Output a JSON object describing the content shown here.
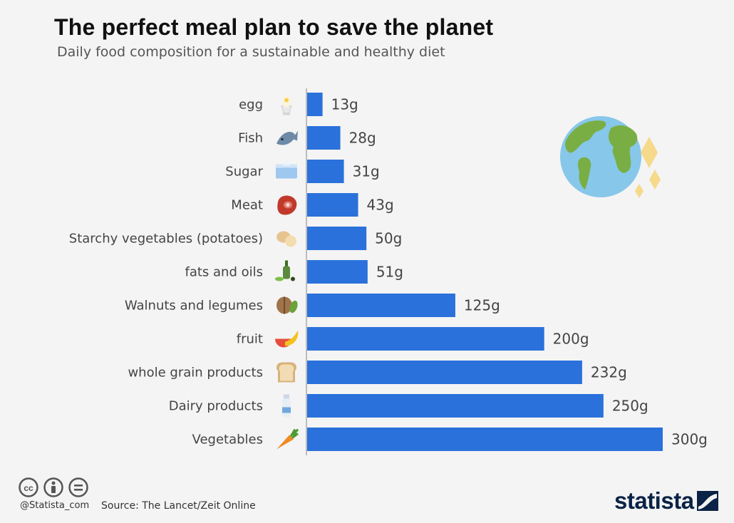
{
  "title": "The perfect meal plan to save the planet",
  "subtitle": "Daily food composition for a sustainable and healthy diet",
  "footer": {
    "handle": "@Statista_com",
    "source": "Source: The Lancet/Zeit Online",
    "brand": "statista"
  },
  "colors": {
    "bar": "#2a71db",
    "background": "#f4f4f4",
    "axis": "#bdbdbd",
    "label_text": "#444444",
    "value_text": "#444444"
  },
  "chart_data": {
    "type": "bar",
    "orientation": "horizontal",
    "title": "The perfect meal plan to save the planet",
    "subtitle": "Daily food composition for a sustainable and healthy diet",
    "xlabel": "",
    "ylabel": "",
    "xlim": [
      0,
      300
    ],
    "grid": false,
    "categories": [
      "egg",
      "Fish",
      "Sugar",
      "Meat",
      "Starchy vegetables (potatoes)",
      "fats and oils",
      "Walnuts and legumes",
      "fruit",
      "whole grain products",
      "Dairy products",
      "Vegetables"
    ],
    "values": [
      13,
      28,
      31,
      43,
      50,
      51,
      125,
      200,
      232,
      250,
      300
    ],
    "value_labels": [
      "13g",
      "28g",
      "31g",
      "43g",
      "50g",
      "51g",
      "125g",
      "200g",
      "232g",
      "250g",
      "300g"
    ],
    "icons": [
      "egg-icon",
      "fish-icon",
      "sugar-icon",
      "meat-icon",
      "potato-icon",
      "oil-bottle-icon",
      "walnut-icon",
      "fruit-icon",
      "bread-icon",
      "milk-bottle-icon",
      "carrot-icon"
    ]
  }
}
